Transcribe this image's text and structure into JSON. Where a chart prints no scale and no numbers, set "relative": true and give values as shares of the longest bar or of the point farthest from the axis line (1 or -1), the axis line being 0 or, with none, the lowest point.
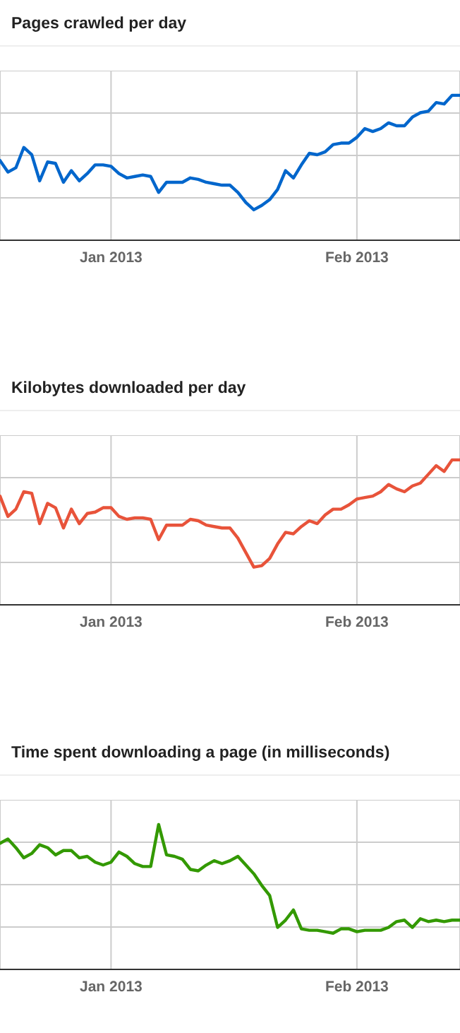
{
  "chart_data": [
    {
      "type": "line",
      "title": "Pages crawled per day",
      "relative": true,
      "grid": true,
      "marker": "none",
      "line_style": "solid",
      "xlim": [
        "2012-12-18",
        "2013-02-14"
      ],
      "xticks": [
        {
          "value": "2013-01-01",
          "label": "Jan 2013"
        },
        {
          "value": "2013-02-01",
          "label": "Feb 2013"
        }
      ],
      "x": [
        "2012-12-18",
        "2012-12-19",
        "2012-12-20",
        "2012-12-21",
        "2012-12-22",
        "2012-12-23",
        "2012-12-24",
        "2012-12-25",
        "2012-12-26",
        "2012-12-27",
        "2012-12-28",
        "2012-12-29",
        "2012-12-30",
        "2012-12-31",
        "2013-01-01",
        "2013-01-02",
        "2013-01-03",
        "2013-01-04",
        "2013-01-05",
        "2013-01-06",
        "2013-01-07",
        "2013-01-08",
        "2013-01-09",
        "2013-01-10",
        "2013-01-11",
        "2013-01-12",
        "2013-01-13",
        "2013-01-14",
        "2013-01-15",
        "2013-01-16",
        "2013-01-17",
        "2013-01-18",
        "2013-01-19",
        "2013-01-20",
        "2013-01-21",
        "2013-01-22",
        "2013-01-23",
        "2013-01-24",
        "2013-01-25",
        "2013-01-26",
        "2013-01-27",
        "2013-01-28",
        "2013-01-29",
        "2013-01-30",
        "2013-01-31",
        "2013-02-01",
        "2013-02-02",
        "2013-02-03",
        "2013-02-04",
        "2013-02-05",
        "2013-02-06",
        "2013-02-07",
        "2013-02-08",
        "2013-02-09",
        "2013-02-10",
        "2013-02-11",
        "2013-02-12",
        "2013-02-13",
        "2013-02-14"
      ],
      "series": [
        {
          "color": "#0066cc",
          "values": [
            0.55,
            0.47,
            0.5,
            0.64,
            0.59,
            0.41,
            0.54,
            0.53,
            0.4,
            0.48,
            0.41,
            0.46,
            0.52,
            0.52,
            0.51,
            0.46,
            0.43,
            0.44,
            0.45,
            0.44,
            0.33,
            0.4,
            0.4,
            0.4,
            0.43,
            0.42,
            0.4,
            0.39,
            0.38,
            0.38,
            0.33,
            0.26,
            0.21,
            0.24,
            0.28,
            0.35,
            0.48,
            0.43,
            0.52,
            0.6,
            0.59,
            0.61,
            0.66,
            0.67,
            0.67,
            0.71,
            0.77,
            0.75,
            0.77,
            0.81,
            0.79,
            0.79,
            0.85,
            0.88,
            0.89,
            0.95,
            0.94,
            1,
            1
          ]
        }
      ]
    },
    {
      "type": "line",
      "title": "Kilobytes downloaded per day",
      "relative": true,
      "grid": true,
      "marker": "none",
      "line_style": "solid",
      "xlim": [
        "2012-12-18",
        "2013-02-14"
      ],
      "xticks": [
        {
          "value": "2013-01-01",
          "label": "Jan 2013"
        },
        {
          "value": "2013-02-01",
          "label": "Feb 2013"
        }
      ],
      "x": [
        "2012-12-18",
        "2012-12-19",
        "2012-12-20",
        "2012-12-21",
        "2012-12-22",
        "2012-12-23",
        "2012-12-24",
        "2012-12-25",
        "2012-12-26",
        "2012-12-27",
        "2012-12-28",
        "2012-12-29",
        "2012-12-30",
        "2012-12-31",
        "2013-01-01",
        "2013-01-02",
        "2013-01-03",
        "2013-01-04",
        "2013-01-05",
        "2013-01-06",
        "2013-01-07",
        "2013-01-08",
        "2013-01-09",
        "2013-01-10",
        "2013-01-11",
        "2013-01-12",
        "2013-01-13",
        "2013-01-14",
        "2013-01-15",
        "2013-01-16",
        "2013-01-17",
        "2013-01-18",
        "2013-01-19",
        "2013-01-20",
        "2013-01-21",
        "2013-01-22",
        "2013-01-23",
        "2013-01-24",
        "2013-01-25",
        "2013-01-26",
        "2013-01-27",
        "2013-01-28",
        "2013-01-29",
        "2013-01-30",
        "2013-01-31",
        "2013-02-01",
        "2013-02-02",
        "2013-02-03",
        "2013-02-04",
        "2013-02-05",
        "2013-02-06",
        "2013-02-07",
        "2013-02-08",
        "2013-02-09",
        "2013-02-10",
        "2013-02-11",
        "2013-02-12",
        "2013-02-13",
        "2013-02-14"
      ],
      "series": [
        {
          "color": "#e8533a",
          "values": [
            0.75,
            0.61,
            0.66,
            0.78,
            0.77,
            0.56,
            0.7,
            0.67,
            0.53,
            0.66,
            0.56,
            0.63,
            0.64,
            0.67,
            0.67,
            0.61,
            0.59,
            0.6,
            0.6,
            0.59,
            0.45,
            0.55,
            0.55,
            0.55,
            0.59,
            0.58,
            0.55,
            0.54,
            0.53,
            0.53,
            0.46,
            0.36,
            0.26,
            0.27,
            0.32,
            0.42,
            0.5,
            0.49,
            0.54,
            0.58,
            0.56,
            0.62,
            0.66,
            0.66,
            0.69,
            0.73,
            0.74,
            0.75,
            0.78,
            0.83,
            0.8,
            0.78,
            0.82,
            0.84,
            0.9,
            0.96,
            0.92,
            1,
            1
          ]
        }
      ]
    },
    {
      "type": "line",
      "title": "Time spent downloading a page (in milliseconds)",
      "relative": true,
      "grid": true,
      "marker": "none",
      "line_style": "solid",
      "xlim": [
        "2012-12-18",
        "2013-02-14"
      ],
      "xticks": [
        {
          "value": "2013-01-01",
          "label": "Jan 2013"
        },
        {
          "value": "2013-02-01",
          "label": "Feb 2013"
        }
      ],
      "x": [
        "2012-12-18",
        "2012-12-19",
        "2012-12-20",
        "2012-12-21",
        "2012-12-22",
        "2012-12-23",
        "2012-12-24",
        "2012-12-25",
        "2012-12-26",
        "2012-12-27",
        "2012-12-28",
        "2012-12-29",
        "2012-12-30",
        "2012-12-31",
        "2013-01-01",
        "2013-01-02",
        "2013-01-03",
        "2013-01-04",
        "2013-01-05",
        "2013-01-06",
        "2013-01-07",
        "2013-01-08",
        "2013-01-09",
        "2013-01-10",
        "2013-01-11",
        "2013-01-12",
        "2013-01-13",
        "2013-01-14",
        "2013-01-15",
        "2013-01-16",
        "2013-01-17",
        "2013-01-18",
        "2013-01-19",
        "2013-01-20",
        "2013-01-21",
        "2013-01-22",
        "2013-01-23",
        "2013-01-24",
        "2013-01-25",
        "2013-01-26",
        "2013-01-27",
        "2013-01-28",
        "2013-01-29",
        "2013-01-30",
        "2013-01-31",
        "2013-02-01",
        "2013-02-02",
        "2013-02-03",
        "2013-02-04",
        "2013-02-05",
        "2013-02-06",
        "2013-02-07",
        "2013-02-08",
        "2013-02-09",
        "2013-02-10",
        "2013-02-11",
        "2013-02-12",
        "2013-02-13",
        "2013-02-14"
      ],
      "series": [
        {
          "color": "#339900",
          "values": [
            0.87,
            0.9,
            0.84,
            0.77,
            0.8,
            0.86,
            0.84,
            0.79,
            0.82,
            0.82,
            0.77,
            0.78,
            0.74,
            0.72,
            0.74,
            0.81,
            0.78,
            0.73,
            0.71,
            0.71,
            1,
            0.79,
            0.78,
            0.76,
            0.69,
            0.68,
            0.72,
            0.75,
            0.73,
            0.75,
            0.78,
            0.72,
            0.66,
            0.58,
            0.51,
            0.29,
            0.34,
            0.41,
            0.28,
            0.27,
            0.27,
            0.26,
            0.25,
            0.28,
            0.28,
            0.26,
            0.27,
            0.27,
            0.27,
            0.29,
            0.33,
            0.34,
            0.29,
            0.35,
            0.33,
            0.34,
            0.33,
            0.34,
            0.34
          ]
        }
      ]
    }
  ]
}
